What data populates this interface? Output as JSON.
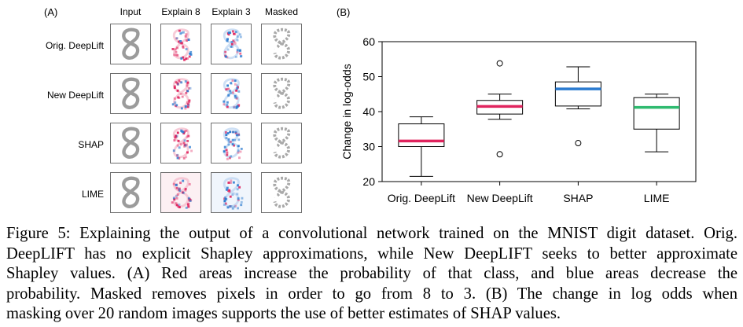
{
  "panel_a": {
    "label": "(A)",
    "columns": [
      "Input",
      "Explain 8",
      "Explain 3",
      "Masked"
    ],
    "rows": [
      "Orig. DeepLift",
      "New DeepLift",
      "SHAP",
      "LIME"
    ]
  },
  "chart_data": {
    "type": "box",
    "panel_label": "(B)",
    "title": "",
    "xlabel": "",
    "ylabel": "Change in log-odds",
    "ylim": [
      20,
      60
    ],
    "yticks": [
      20,
      30,
      40,
      50,
      60
    ],
    "grid": false,
    "categories": [
      "Orig. DeepLift",
      "New DeepLift",
      "SHAP",
      "LIME"
    ],
    "boxes": [
      {
        "category": "Orig. DeepLift",
        "whisker_low": 21.5,
        "q1": 30.0,
        "median": 31.6,
        "q3": 36.5,
        "whisker_high": 38.5,
        "outliers": [],
        "median_color": "#e0245e"
      },
      {
        "category": "New DeepLift",
        "whisker_low": 37.8,
        "q1": 39.3,
        "median": 41.5,
        "q3": 43.2,
        "whisker_high": 45.0,
        "outliers": [
          53.8,
          27.8
        ],
        "median_color": "#e0245e"
      },
      {
        "category": "SHAP",
        "whisker_low": 40.8,
        "q1": 41.6,
        "median": 46.5,
        "q3": 48.5,
        "whisker_high": 52.8,
        "outliers": [
          31.0
        ],
        "median_color": "#2b7bd0"
      },
      {
        "category": "LIME",
        "whisker_low": 28.5,
        "q1": 35.0,
        "median": 41.2,
        "q3": 44.0,
        "whisker_high": 45.0,
        "outliers": [],
        "median_color": "#2fba6f"
      }
    ]
  },
  "caption": {
    "lines": [
      "Figure 5: Explaining the output of a convolutional network trained on the MNIST digit dataset. Orig.",
      "DeepLIFT has no explicit Shapley approximations, while New DeepLIFT seeks to better approximate",
      "Shapley values.  (A) Red areas increase the probability of that class, and blue areas decrease the",
      "probability. Masked removes pixels in order to go from 8 to 3. (B) The change in log odds when",
      "masking over 20 random images supports the use of better estimates of SHAP values."
    ]
  },
  "colors": {
    "positive": "#e0245e",
    "negative": "#2b7bd0",
    "digit": "#8a8a8a"
  }
}
